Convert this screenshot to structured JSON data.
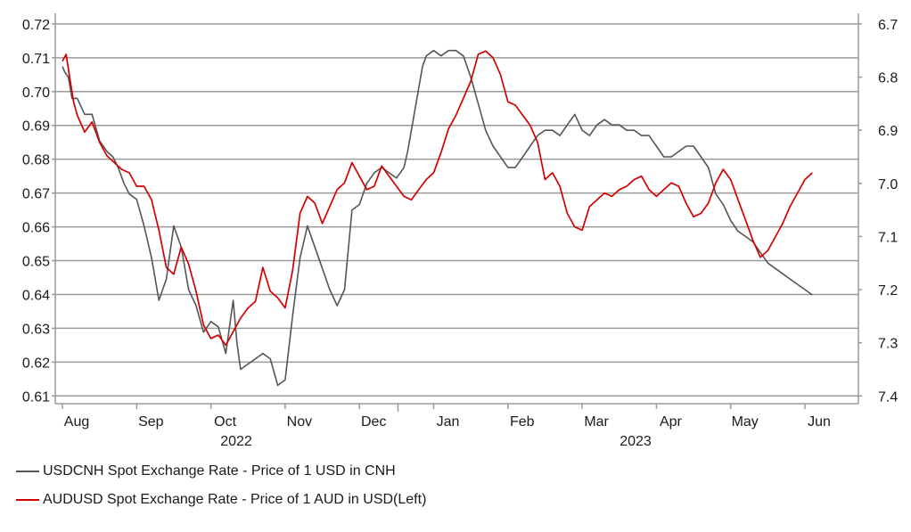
{
  "chart_data": {
    "type": "line",
    "title": "",
    "x_months": [
      "Aug",
      "Sep",
      "Oct",
      "Nov",
      "Dec",
      "Jan",
      "Feb",
      "Mar",
      "Apr",
      "May",
      "Jun"
    ],
    "x_years": [
      "2022",
      "2023"
    ],
    "left_axis": {
      "min": 0.61,
      "max": 0.72,
      "ticks": [
        "0.72",
        "0.71",
        "0.70",
        "0.69",
        "0.68",
        "0.67",
        "0.66",
        "0.65",
        "0.64",
        "0.63",
        "0.62",
        "0.61"
      ]
    },
    "right_axis": {
      "min": 6.7,
      "max": 7.4,
      "inverted": true,
      "ticks": [
        "6.7",
        "6.8",
        "6.9",
        "7.0",
        "7.1",
        "7.2",
        "7.3",
        "7.4"
      ]
    },
    "grid": true,
    "series": [
      {
        "name": "USDCNH Spot Exchange Rate - Price of 1 USD in CNH",
        "axis": "right",
        "color": "#555555",
        "x": [
          0,
          0.03,
          0.08,
          0.13,
          0.2,
          0.3,
          0.4,
          0.5,
          0.6,
          0.68,
          0.75,
          0.83,
          0.9,
          1.0,
          1.1,
          1.2,
          1.3,
          1.4,
          1.5,
          1.6,
          1.7,
          1.8,
          1.9,
          2.0,
          2.1,
          2.2,
          2.3,
          2.35,
          2.4,
          2.5,
          2.6,
          2.7,
          2.8,
          2.9,
          3.0,
          3.1,
          3.2,
          3.3,
          3.4,
          3.5,
          3.6,
          3.7,
          3.8,
          3.9,
          4.0,
          4.1,
          4.2,
          4.3,
          4.4,
          4.5,
          4.6,
          4.65,
          4.7,
          4.75,
          4.8,
          4.85,
          4.9,
          5.0,
          5.1,
          5.2,
          5.3,
          5.4,
          5.45,
          5.5,
          5.6,
          5.7,
          5.8,
          5.9,
          6.0,
          6.1,
          6.2,
          6.3,
          6.4,
          6.5,
          6.6,
          6.7,
          6.8,
          6.9,
          7.0,
          7.1,
          7.2,
          7.3,
          7.4,
          7.5,
          7.6,
          7.7,
          7.8,
          7.9,
          8.0,
          8.1,
          8.2,
          8.3,
          8.4,
          8.5,
          8.6,
          8.7,
          8.8,
          8.9,
          9.0,
          9.1,
          9.2,
          9.3,
          9.4,
          9.5,
          9.6,
          9.7,
          9.8,
          9.9,
          10.0,
          10.1
        ],
        "y": [
          6.78,
          6.79,
          6.8,
          6.84,
          6.84,
          6.87,
          6.87,
          6.92,
          6.94,
          6.95,
          6.97,
          7.0,
          7.02,
          7.03,
          7.08,
          7.14,
          7.22,
          7.18,
          7.08,
          7.12,
          7.2,
          7.23,
          7.28,
          7.26,
          7.27,
          7.32,
          7.22,
          7.3,
          7.35,
          7.34,
          7.33,
          7.32,
          7.33,
          7.38,
          7.37,
          7.25,
          7.14,
          7.08,
          7.12,
          7.16,
          7.2,
          7.23,
          7.2,
          7.05,
          7.04,
          7.0,
          6.98,
          6.97,
          6.98,
          6.99,
          6.97,
          6.94,
          6.9,
          6.86,
          6.82,
          6.78,
          6.76,
          6.75,
          6.76,
          6.75,
          6.75,
          6.76,
          6.78,
          6.8,
          6.85,
          6.9,
          6.93,
          6.95,
          6.97,
          6.97,
          6.95,
          6.93,
          6.91,
          6.9,
          6.9,
          6.91,
          6.89,
          6.87,
          6.9,
          6.91,
          6.89,
          6.88,
          6.89,
          6.89,
          6.9,
          6.9,
          6.91,
          6.91,
          6.93,
          6.95,
          6.95,
          6.94,
          6.93,
          6.93,
          6.95,
          6.97,
          7.02,
          7.04,
          7.07,
          7.09,
          7.1,
          7.11,
          7.13,
          7.15,
          7.16,
          7.17,
          7.18,
          7.19,
          7.2,
          7.21
        ]
      },
      {
        "name": "AUDUSD Spot Exchange Rate - Price of 1 AUD in USD(Left)",
        "axis": "left",
        "color": "#d40000",
        "x": [
          0,
          0.05,
          0.1,
          0.15,
          0.2,
          0.3,
          0.4,
          0.5,
          0.6,
          0.7,
          0.8,
          0.9,
          1.0,
          1.1,
          1.2,
          1.3,
          1.4,
          1.5,
          1.6,
          1.7,
          1.8,
          1.9,
          2.0,
          2.1,
          2.2,
          2.3,
          2.4,
          2.5,
          2.6,
          2.7,
          2.8,
          2.9,
          3.0,
          3.1,
          3.2,
          3.3,
          3.4,
          3.5,
          3.6,
          3.7,
          3.8,
          3.9,
          4.0,
          4.1,
          4.2,
          4.3,
          4.4,
          4.5,
          4.6,
          4.7,
          4.8,
          4.9,
          5.0,
          5.1,
          5.2,
          5.3,
          5.4,
          5.5,
          5.6,
          5.7,
          5.8,
          5.9,
          6.0,
          6.1,
          6.2,
          6.3,
          6.4,
          6.5,
          6.6,
          6.7,
          6.8,
          6.9,
          7.0,
          7.1,
          7.2,
          7.3,
          7.4,
          7.5,
          7.6,
          7.7,
          7.8,
          7.9,
          8.0,
          8.1,
          8.2,
          8.3,
          8.4,
          8.5,
          8.6,
          8.7,
          8.8,
          8.9,
          9.0,
          9.1,
          9.2,
          9.3,
          9.4,
          9.5,
          9.6,
          9.7,
          9.8,
          9.9,
          10.0,
          10.1
        ],
        "y": [
          0.709,
          0.711,
          0.704,
          0.697,
          0.693,
          0.688,
          0.691,
          0.685,
          0.681,
          0.679,
          0.677,
          0.676,
          0.672,
          0.672,
          0.668,
          0.659,
          0.648,
          0.646,
          0.654,
          0.649,
          0.641,
          0.631,
          0.627,
          0.628,
          0.625,
          0.629,
          0.633,
          0.636,
          0.638,
          0.648,
          0.641,
          0.639,
          0.636,
          0.647,
          0.664,
          0.669,
          0.667,
          0.661,
          0.666,
          0.671,
          0.673,
          0.679,
          0.675,
          0.671,
          0.672,
          0.678,
          0.675,
          0.672,
          0.669,
          0.668,
          0.671,
          0.674,
          0.676,
          0.682,
          0.689,
          0.693,
          0.698,
          0.703,
          0.711,
          0.712,
          0.71,
          0.705,
          0.697,
          0.696,
          0.693,
          0.69,
          0.685,
          0.674,
          0.676,
          0.672,
          0.664,
          0.66,
          0.659,
          0.666,
          0.668,
          0.67,
          0.669,
          0.671,
          0.672,
          0.674,
          0.675,
          0.671,
          0.669,
          0.671,
          0.673,
          0.672,
          0.667,
          0.663,
          0.664,
          0.667,
          0.673,
          0.677,
          0.674,
          0.668,
          0.662,
          0.656,
          0.651,
          0.653,
          0.657,
          0.661,
          0.666,
          0.67,
          0.674,
          0.676
        ]
      }
    ]
  },
  "legend": {
    "usdcnh_label": "USDCNH Spot Exchange Rate - Price of 1 USD in CNH",
    "usdcnh_color": "#555555",
    "audusd_label": "AUDUSD Spot Exchange Rate - Price of 1 AUD in USD(Left)",
    "audusd_color": "#d40000"
  }
}
